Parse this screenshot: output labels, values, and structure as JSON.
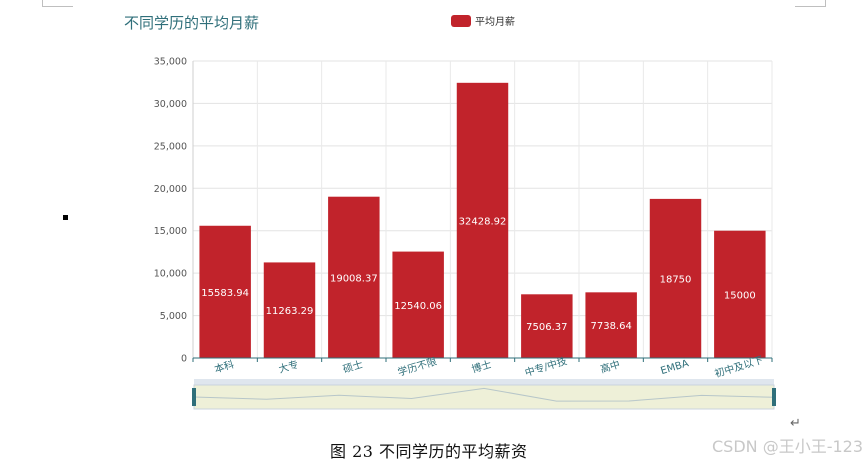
{
  "caption": "图 23 不同学历的平均薪资",
  "return_mark": "↵",
  "watermark": "CSDN @王小王-123",
  "colors": {
    "bar": "#c1232b",
    "title": "#2f6f7a",
    "axis_label": "#2f6f7a"
  },
  "chart_data": {
    "type": "bar",
    "title": "不同学历的平均月薪",
    "legend": "平均月薪",
    "legend_position": "top-center",
    "categories": [
      "本科",
      "大专",
      "硕士",
      "学历不限",
      "博士",
      "中专/中技",
      "高中",
      "EMBA",
      "初中及以下"
    ],
    "series": [
      {
        "name": "平均月薪",
        "values": [
          15583.94,
          11263.29,
          19008.37,
          12540.06,
          32428.92,
          7506.37,
          7738.64,
          18750,
          15000
        ]
      }
    ],
    "value_labels": [
      "15583.94",
      "11263.29",
      "19008.37",
      "12540.06",
      "32428.92",
      "7506.37",
      "7738.64",
      "18750",
      "15000"
    ],
    "ylim": [
      0,
      35000
    ],
    "yticks": [
      "0",
      "5,000",
      "10,000",
      "15,000",
      "20,000",
      "25,000",
      "30,000",
      "35,000"
    ],
    "grid": true,
    "data_zoom": true
  }
}
